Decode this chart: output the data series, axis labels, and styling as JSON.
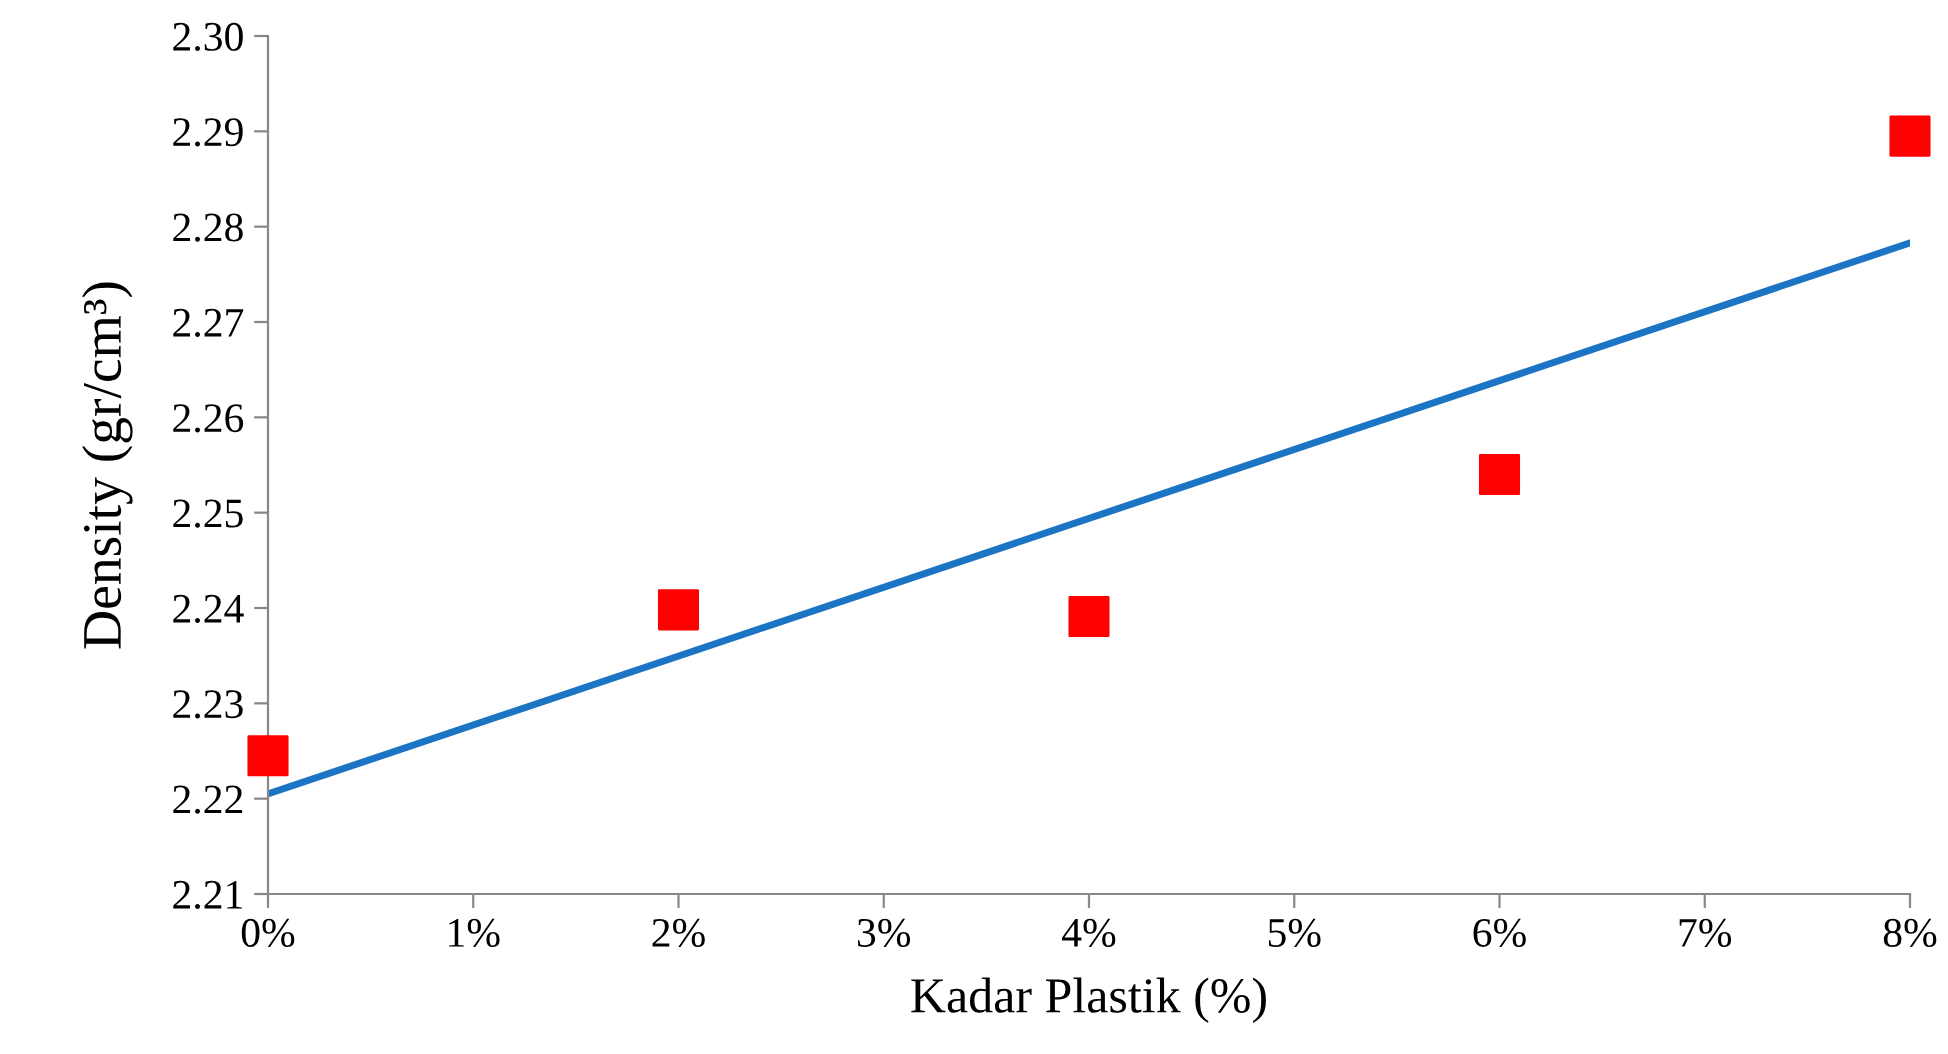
{
  "chart_data": {
    "type": "scatter",
    "xlabel": "Kadar Plastik (%)",
    "ylabel": "Density (gr/cm³)",
    "series": [
      {
        "color": "#ff0000",
        "marker": "square",
        "x": [
          0,
          2,
          4,
          6,
          8
        ],
        "values": [
          2.2245,
          2.2398,
          2.2391,
          2.254,
          2.2895
        ]
      },
      {
        "type": "line",
        "color": "#1b75c4",
        "marker": "none",
        "line_style": "solid",
        "x": [
          0,
          8
        ],
        "values": [
          2.2205,
          2.2783
        ]
      }
    ],
    "xlim": [
      0,
      8
    ],
    "ylim": [
      2.21,
      2.3
    ],
    "xticks": [
      {
        "value": 0,
        "label": "0%"
      },
      {
        "value": 1,
        "label": "1%"
      },
      {
        "value": 2,
        "label": "2%"
      },
      {
        "value": 3,
        "label": "3%"
      },
      {
        "value": 4,
        "label": "4%"
      },
      {
        "value": 5,
        "label": "5%"
      },
      {
        "value": 6,
        "label": "6%"
      },
      {
        "value": 7,
        "label": "7%"
      },
      {
        "value": 8,
        "label": "8%"
      }
    ],
    "yticks": [
      {
        "value": 2.21,
        "label": "2.21"
      },
      {
        "value": 2.22,
        "label": "2.22"
      },
      {
        "value": 2.23,
        "label": "2.23"
      },
      {
        "value": 2.24,
        "label": "2.24"
      },
      {
        "value": 2.25,
        "label": "2.25"
      },
      {
        "value": 2.26,
        "label": "2.26"
      },
      {
        "value": 2.27,
        "label": "2.27"
      },
      {
        "value": 2.28,
        "label": "2.28"
      },
      {
        "value": 2.29,
        "label": "2.29"
      },
      {
        "value": 2.3,
        "label": "2.30"
      }
    ],
    "grid": false,
    "legend": false
  }
}
